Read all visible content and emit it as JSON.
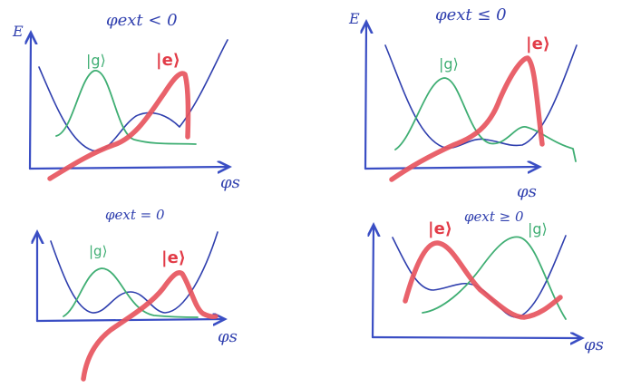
{
  "panels": [
    {
      "id": "top-left",
      "title": "φext < 0",
      "y_axis_label": "E",
      "x_axis_label": "φs",
      "ground_state_label": "|g⟩",
      "excited_state_label": "|e⟩"
    },
    {
      "id": "top-right",
      "title": "φext ≤ 0",
      "y_axis_label": "E",
      "x_axis_label": "φs",
      "ground_state_label": "|g⟩",
      "excited_state_label": "|e⟩"
    },
    {
      "id": "bottom-left",
      "title": "φext = 0",
      "y_axis_label": "",
      "x_axis_label": "φs",
      "ground_state_label": "|g⟩",
      "excited_state_label": "|e⟩"
    },
    {
      "id": "bottom-right",
      "title": "φext ≥ 0",
      "y_axis_label": "",
      "x_axis_label": "φs",
      "ground_state_label": "|g⟩",
      "excited_state_label": "|e⟩"
    }
  ],
  "colors": {
    "axes": "#3a4ec4",
    "potential": "#2f3fae",
    "ground_state": "#3fae73",
    "excited_state": "#e7555e"
  }
}
